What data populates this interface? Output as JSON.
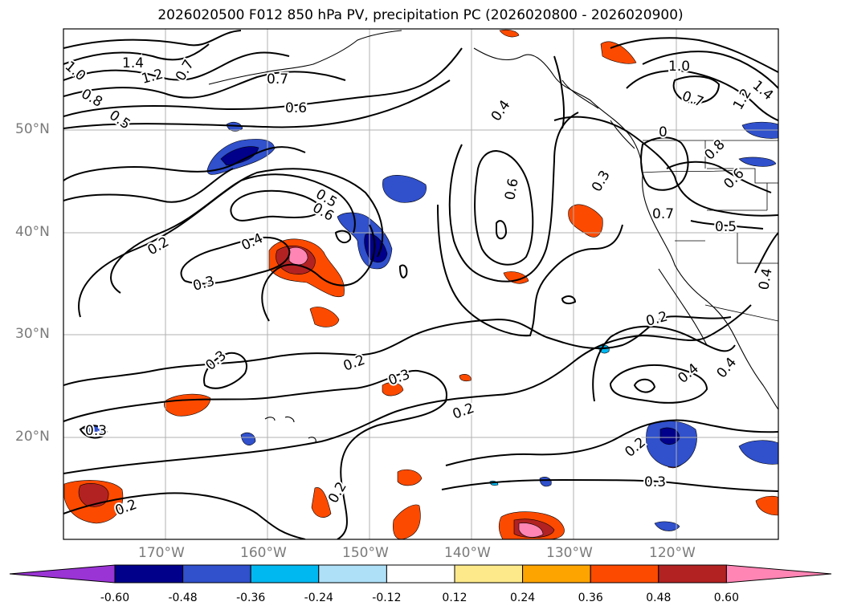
{
  "title": "2026020500 F012 850 hPa PV, precipitation PC (2026020800 - 2026020900)",
  "axes": {
    "lat_labels": [
      "50°N",
      "40°N",
      "30°N",
      "20°N"
    ],
    "lon_labels": [
      "170°W",
      "160°W",
      "150°W",
      "140°W",
      "130°W",
      "120°W"
    ],
    "label_color": "#7a7a7a"
  },
  "chart_data": {
    "type": "map",
    "contour_field": "850 hPa PV",
    "fill_field": "precipitation PC",
    "lon_range": [
      -180,
      -110
    ],
    "lat_range": [
      10,
      60
    ],
    "grid": true,
    "contour_labels": [
      "1.4",
      "1.2",
      "1.0",
      "0.8",
      "0.7",
      "0.7",
      "0.6",
      "0.5",
      "0.5",
      "0.6",
      "0.4",
      "0.2",
      "0.3",
      "0.4",
      "0.6",
      "0.3",
      "0",
      "0.7",
      "0.8",
      "0.6",
      "0.5",
      "1.0",
      "0.7",
      "1.2",
      "1.4",
      "0.4",
      "0.2",
      "0.3",
      "0.2",
      "0.3",
      "0.2",
      "0.4",
      "0.4",
      "0.2",
      "0.3",
      "0.3",
      "0.2",
      "0.2"
    ],
    "colorbar": {
      "ticks": [
        "-0.60",
        "-0.48",
        "-0.36",
        "-0.24",
        "-0.12",
        "0.12",
        "0.24",
        "0.36",
        "0.48",
        "0.60"
      ],
      "colors": [
        "#9a34d4",
        "#00008b",
        "#3050cc",
        "#00b8f0",
        "#aee0f8",
        "#ffffff",
        "#fde98a",
        "#fea400",
        "#fc4a00",
        "#b22222",
        "#ff85b4"
      ],
      "extend": "both"
    }
  }
}
